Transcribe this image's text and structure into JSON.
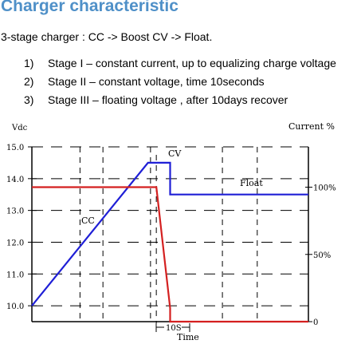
{
  "header": {
    "title": "Charger characteristic",
    "subtitle": "3-stage charger : CC -> Boost CV -> Float."
  },
  "stages": [
    {
      "num": "1)",
      "text": "Stage I – constant current, up to equalizing charge voltage"
    },
    {
      "num": "2)",
      "text": "Stage II – constant voltage, time 10seconds"
    },
    {
      "num": "3)",
      "text": "Stage III –  floating voltage , after 10days recover"
    }
  ],
  "chart_data": {
    "type": "line",
    "ylabel_left": "Vdc",
    "ylabel_right": "Current %",
    "xlabel": "Time",
    "y_left_ticks": [
      "15.0",
      "14.0",
      "13.0",
      "12.0",
      "11.0",
      "10.0"
    ],
    "y_left_range": [
      9.5,
      15.0
    ],
    "y_right_ticks": [
      {
        "label": "100%",
        "value": 100
      },
      {
        "label": "50%",
        "value": 50
      },
      {
        "label": "0",
        "value": 0
      }
    ],
    "y_right_range": [
      0,
      130
    ],
    "grid": "dashed",
    "annotations": {
      "cv": "CV",
      "float": "Float",
      "cc": "CC",
      "duration": "10S"
    },
    "series": [
      {
        "name": "voltage",
        "color": "#1f1fd6",
        "axis": "left",
        "points": [
          [
            0,
            10.0
          ],
          [
            4.2,
            14.5
          ],
          [
            5.0,
            14.5
          ],
          [
            5.0,
            13.5
          ],
          [
            10,
            13.5
          ]
        ]
      },
      {
        "name": "current",
        "color": "#d42020",
        "axis": "right",
        "points": [
          [
            0,
            100
          ],
          [
            4.5,
            100
          ],
          [
            5.0,
            10
          ],
          [
            5.0,
            0
          ],
          [
            10,
            0
          ]
        ]
      }
    ]
  }
}
